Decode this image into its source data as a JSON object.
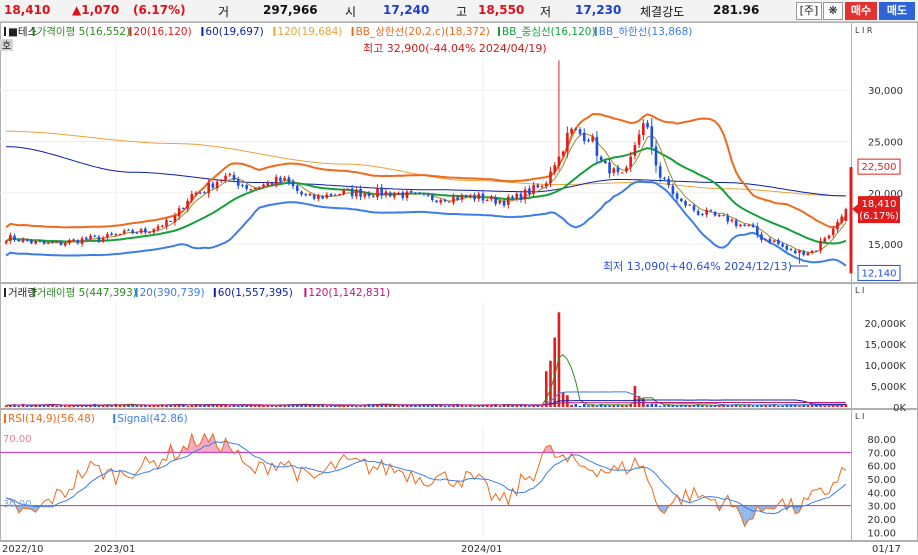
{
  "topbar": {
    "price": "18,410",
    "change": "▲1,070",
    "change_pct": "(6.17%)",
    "volume_label": "거",
    "volume": "297,966",
    "open_label": "시",
    "open": "17,240",
    "high_label": "고",
    "high": "18,550",
    "low_label": "저",
    "low": "17,230",
    "strength_label": "체결강도",
    "strength": "281.96",
    "unit_button": "[주]",
    "settings_icon": "gear-icon",
    "buy_button": "매수",
    "sell_button": "매도"
  },
  "price_panel": {
    "legend": [
      {
        "text": "■테스",
        "color": "#222222"
      },
      {
        "text": "가격이평 5(16,552)",
        "color": "#2e8b22"
      },
      {
        "text": "20(16,120)",
        "color": "#e21c1c"
      },
      {
        "text": "60(19,697)",
        "color": "#0b1fa8"
      },
      {
        "text": "120(19,684)",
        "color": "#e8a33a"
      },
      {
        "text": "BB_상한선(20,2,c)(18,372)",
        "color": "#ee6a1c"
      },
      {
        "text": "BB_중심선(16,120)",
        "color": "#13a13a"
      },
      {
        "text": "BB_하한선(13,868)",
        "color": "#3c7ee6"
      }
    ],
    "tag": "호",
    "corner_tag": "L I R",
    "y_ticks": [
      {
        "value": 15000,
        "label": "15,000"
      },
      {
        "value": 20000,
        "label": "20,000"
      },
      {
        "value": 25000,
        "label": "25,000"
      },
      {
        "value": 30000,
        "label": "30,000"
      }
    ],
    "high_annotation": "최고 32,900(-44.04% 2024/04/19)",
    "low_annotation": "최저 13,090(+40.64% 2024/12/13)",
    "last_price_badge": [
      "18,410",
      "(6.17%)"
    ],
    "upper_badge": "22,500",
    "lower_badge": "12,140"
  },
  "volume_panel": {
    "legend": [
      {
        "text": "거래량",
        "color": "#222222"
      },
      {
        "text": "거래이평 5(447,393)",
        "color": "#2e8b22"
      },
      {
        "text": "20(390,739)",
        "color": "#3c7ee6"
      },
      {
        "text": "60(1,557,395)",
        "color": "#0b1fa8"
      },
      {
        "text": "120(1,142,831)",
        "color": "#c0167a"
      }
    ],
    "corner_tag": "L I",
    "y_ticks": [
      {
        "value": 0,
        "label": "0K"
      },
      {
        "value": 5000,
        "label": "5,000K"
      },
      {
        "value": 10000,
        "label": "10,000K"
      },
      {
        "value": 15000,
        "label": "15,000K"
      },
      {
        "value": 20000,
        "label": "20,000K"
      }
    ]
  },
  "rsi_panel": {
    "legend": [
      {
        "text": "RSI(14,9)(56.48)",
        "color": "#ee6a1c"
      },
      {
        "text": "Signal(42.86)",
        "color": "#3c7ee6"
      }
    ],
    "corner_tag": "L I",
    "level_labels": [
      "70.00",
      "30.00"
    ],
    "y_ticks": [
      {
        "value": 10,
        "label": "10.00"
      },
      {
        "value": 20,
        "label": "20.00"
      },
      {
        "value": 30,
        "label": "30.00"
      },
      {
        "value": 40,
        "label": "40.00"
      },
      {
        "value": 50,
        "label": "50.00"
      },
      {
        "value": 60,
        "label": "60.00"
      },
      {
        "value": 70,
        "label": "70.00"
      },
      {
        "value": 80,
        "label": "80.00"
      }
    ]
  },
  "x_axis": {
    "labels": [
      "2022/10",
      "2023/01",
      "2024/01"
    ],
    "end_label": "01/17"
  },
  "chart_data": {
    "type": "candlestick",
    "price_ylim": [
      11500,
      34500
    ],
    "volume_ylim": [
      0,
      24000
    ],
    "rsi_ylim": [
      5,
      86
    ],
    "rsi_levels": [
      70,
      30
    ],
    "num_bars": 200,
    "price_anchors": [
      [
        0,
        15600
      ],
      [
        10,
        15000
      ],
      [
        20,
        15500
      ],
      [
        32,
        16200
      ],
      [
        38,
        17000
      ],
      [
        45,
        20000
      ],
      [
        52,
        21500
      ],
      [
        58,
        20500
      ],
      [
        65,
        21200
      ],
      [
        72,
        19500
      ],
      [
        80,
        20000
      ],
      [
        90,
        20000
      ],
      [
        100,
        19500
      ],
      [
        110,
        19600
      ],
      [
        118,
        19200
      ],
      [
        127,
        20500
      ],
      [
        130,
        23000
      ],
      [
        134,
        26000
      ],
      [
        138,
        25500
      ],
      [
        142,
        22500
      ],
      [
        146,
        21500
      ],
      [
        151,
        26500
      ],
      [
        156,
        21000
      ],
      [
        160,
        19000
      ],
      [
        165,
        18000
      ],
      [
        170,
        17500
      ],
      [
        175,
        16800
      ],
      [
        180,
        15500
      ],
      [
        187,
        14200
      ],
      [
        191,
        14300
      ],
      [
        195,
        16000
      ],
      [
        199,
        18410
      ]
    ],
    "sma120_anchors": [
      [
        0,
        26000
      ],
      [
        40,
        24800
      ],
      [
        80,
        22800
      ],
      [
        110,
        21200
      ],
      [
        130,
        20800
      ],
      [
        150,
        21000
      ],
      [
        170,
        20400
      ],
      [
        199,
        19684
      ]
    ],
    "sma60_anchors": [
      [
        0,
        24500
      ],
      [
        30,
        22000
      ],
      [
        60,
        21000
      ],
      [
        100,
        20300
      ],
      [
        125,
        20100
      ],
      [
        145,
        21300
      ],
      [
        170,
        21000
      ],
      [
        199,
        19697
      ]
    ],
    "rsi_anchors": [
      [
        0,
        30
      ],
      [
        6,
        24
      ],
      [
        12,
        37
      ],
      [
        20,
        58
      ],
      [
        26,
        53
      ],
      [
        33,
        60
      ],
      [
        40,
        70
      ],
      [
        46,
        80
      ],
      [
        52,
        76
      ],
      [
        58,
        56
      ],
      [
        65,
        63
      ],
      [
        72,
        50
      ],
      [
        80,
        62
      ],
      [
        90,
        58
      ],
      [
        100,
        51
      ],
      [
        110,
        50
      ],
      [
        118,
        33
      ],
      [
        124,
        52
      ],
      [
        128,
        71
      ],
      [
        133,
        63
      ],
      [
        138,
        59
      ],
      [
        144,
        56
      ],
      [
        150,
        62
      ],
      [
        155,
        29
      ],
      [
        162,
        38
      ],
      [
        170,
        33
      ],
      [
        176,
        20
      ],
      [
        182,
        33
      ],
      [
        187,
        28
      ],
      [
        193,
        38
      ],
      [
        199,
        56.48
      ]
    ],
    "volume_spikes": {
      "128": 8500,
      "129": 11000,
      "130": 16500,
      "131": 22500,
      "132": 3500,
      "133": 2800,
      "149": 5000,
      "150": 2600,
      "151": 2000
    },
    "high_point": {
      "bar": 131,
      "value": 32900,
      "label_date": "2024/04/19"
    },
    "low_point": {
      "bar": 188,
      "value": 13090,
      "label_date": "2024/12/13"
    },
    "last": {
      "bar": 199,
      "open": 17240,
      "high": 18550,
      "low": 17230,
      "close": 18410
    },
    "x_label_bars": [
      0,
      26,
      113
    ]
  }
}
